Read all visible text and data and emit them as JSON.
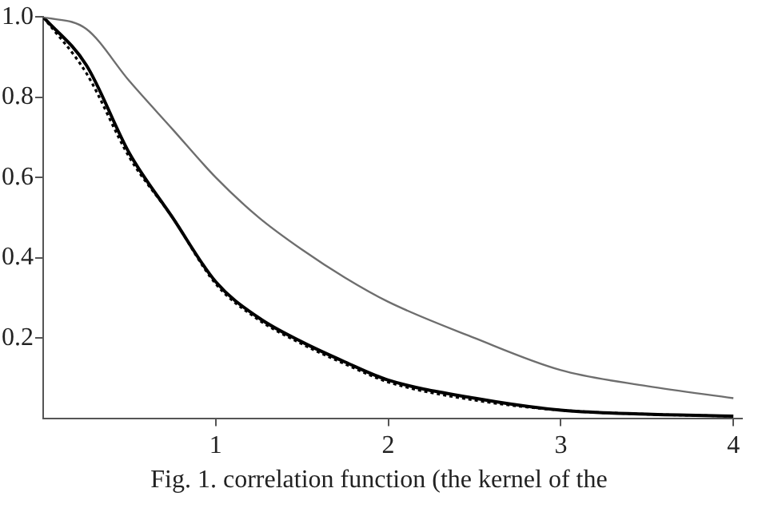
{
  "chart_data": {
    "type": "line",
    "xlim": [
      0,
      4.05
    ],
    "ylim": [
      0,
      1.0
    ],
    "xticks": [
      1,
      2,
      3,
      4
    ],
    "yticks": [
      {
        "value": 0.2,
        "label": "0.2"
      },
      {
        "value": 0.4,
        "label": "0.4"
      },
      {
        "value": 0.6,
        "label": "0.6"
      },
      {
        "value": 0.8,
        "label": "0.8"
      },
      {
        "value": 1,
        "label": "1.0"
      }
    ],
    "grid": false,
    "legend": false,
    "marker": "none",
    "x": [
      0,
      0.25,
      0.5,
      0.75,
      1,
      1.25,
      1.5,
      1.75,
      2,
      2.5,
      3,
      3.5,
      4
    ],
    "series": [
      {
        "color": "#6e6e6e",
        "line_style": "solid",
        "values": [
          1,
          0.97,
          0.84,
          0.72,
          0.6,
          0.5,
          0.42,
          0.35,
          0.29,
          0.2,
          0.12,
          0.08,
          0.05
        ]
      },
      {
        "color": "#000000",
        "line_style": "solid",
        "values": [
          1,
          0.88,
          0.66,
          0.5,
          0.34,
          0.25,
          0.19,
          0.14,
          0.095,
          0.05,
          0.02,
          0.01,
          0.005
        ]
      },
      {
        "color": "#000000",
        "line_style": "dotted",
        "values": [
          1,
          0.86,
          0.65,
          0.5,
          0.335,
          0.245,
          0.185,
          0.135,
          0.09,
          0.045,
          0.02,
          0.01,
          0.005
        ]
      }
    ],
    "annotations": [
      "Fig. 1. correlation function (the kernel of the"
    ]
  }
}
